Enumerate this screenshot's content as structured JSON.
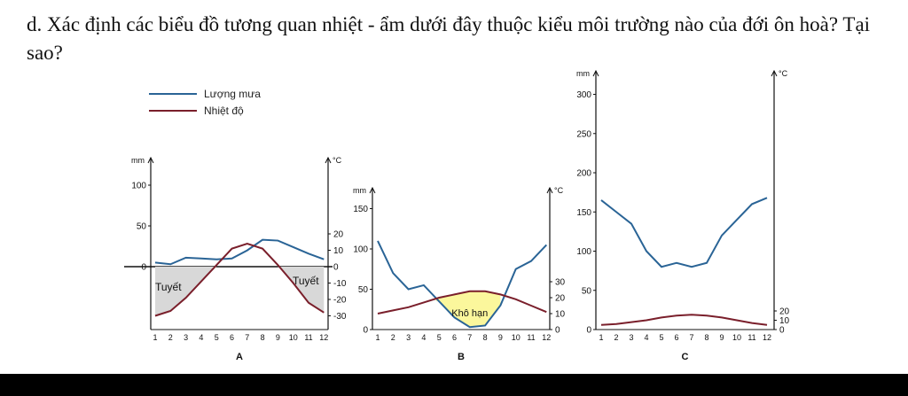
{
  "question": "d. Xác định các biểu đồ tương quan nhiệt - ẩm dưới đây thuộc kiểu môi trường nào của đới ôn hoà? Tại sao?",
  "legend": {
    "rain": "Lượng mưa",
    "temp": "Nhiệt độ"
  },
  "colors": {
    "rain": "#2a6496",
    "temp": "#7a1f2b",
    "snow_fill": "#d8d8d8",
    "dry_fill": "#fbf79c"
  },
  "chart_data": [
    {
      "type": "line",
      "label": "A",
      "x": [
        1,
        2,
        3,
        4,
        5,
        6,
        7,
        8,
        9,
        10,
        11,
        12
      ],
      "left_axis": {
        "unit": "mm",
        "ticks": [
          "0",
          "50",
          "100"
        ]
      },
      "right_axis": {
        "unit": "°C",
        "ticks": [
          "20",
          "10",
          "0",
          "-10",
          "-20",
          "-30"
        ]
      },
      "series": [
        {
          "name": "Lượng mưa",
          "values": [
            5,
            3,
            11,
            10,
            9,
            10,
            20,
            33,
            32,
            24,
            16,
            9
          ]
        },
        {
          "name": "Nhiệt độ",
          "values": [
            -30,
            -27,
            -19,
            -9,
            1,
            11,
            14,
            11,
            1,
            -10,
            -22,
            -28
          ]
        }
      ],
      "annotations": [
        "Tuyết",
        "Tuyết"
      ]
    },
    {
      "type": "line",
      "label": "B",
      "x": [
        1,
        2,
        3,
        4,
        5,
        6,
        7,
        8,
        9,
        10,
        11,
        12
      ],
      "left_axis": {
        "unit": "mm",
        "ticks": [
          "0",
          "50",
          "100",
          "150"
        ]
      },
      "right_axis": {
        "unit": "°C",
        "ticks": [
          "0",
          "10",
          "20",
          "30"
        ]
      },
      "series": [
        {
          "name": "Lượng mưa",
          "values": [
            110,
            70,
            50,
            55,
            35,
            15,
            3,
            5,
            30,
            75,
            85,
            105
          ]
        },
        {
          "name": "Nhiệt độ",
          "values": [
            10,
            12,
            14,
            17,
            20,
            22,
            24,
            24,
            22,
            19,
            15,
            11
          ]
        }
      ],
      "annotations": [
        "Khô hạn"
      ]
    },
    {
      "type": "line",
      "label": "C",
      "x": [
        1,
        2,
        3,
        4,
        5,
        6,
        7,
        8,
        9,
        10,
        11,
        12
      ],
      "left_axis": {
        "unit": "mm",
        "ticks": [
          "0",
          "50",
          "100",
          "150",
          "200",
          "250",
          "300"
        ]
      },
      "right_axis": {
        "unit": "°C",
        "ticks": [
          "0",
          "10",
          "20"
        ]
      },
      "series": [
        {
          "name": "Lượng mưa",
          "values": [
            165,
            150,
            135,
            100,
            80,
            85,
            80,
            85,
            120,
            140,
            160,
            168
          ]
        },
        {
          "name": "Nhiệt độ",
          "values": [
            5,
            6,
            8,
            10,
            13,
            15,
            16,
            15,
            13,
            10,
            7,
            5
          ]
        }
      ],
      "annotations": []
    }
  ]
}
